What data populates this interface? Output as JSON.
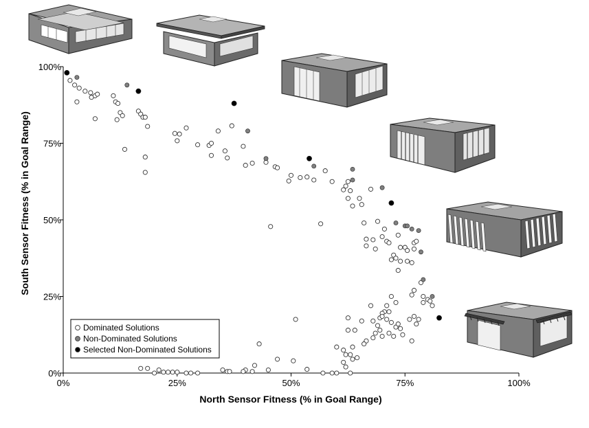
{
  "chart_data": {
    "type": "scatter",
    "title": "",
    "xlabel": "North Sensor Fitness (% in Goal Range)",
    "ylabel": "South Sensor Fitness (% in Goal Range)",
    "xlim": [
      0,
      100
    ],
    "ylim": [
      0,
      100
    ],
    "x_ticks": [
      "0%",
      "25%",
      "50%",
      "75%",
      "100%"
    ],
    "y_ticks": [
      "0%",
      "25%",
      "50%",
      "75%",
      "100%"
    ],
    "grid": false,
    "legend_position": "bottom-left",
    "series": [
      {
        "name": "Dominated Solutions",
        "color": "#ffffff",
        "points": [
          [
            1.5,
            95.5
          ],
          [
            2.5,
            94
          ],
          [
            3,
            88.5
          ],
          [
            3.5,
            93
          ],
          [
            4.8,
            92
          ],
          [
            6,
            91.5
          ],
          [
            6.2,
            90
          ],
          [
            7,
            90.5
          ],
          [
            7.5,
            91
          ],
          [
            7,
            83
          ],
          [
            11,
            90.5
          ],
          [
            11.5,
            88.5
          ],
          [
            12,
            88
          ],
          [
            12.5,
            85
          ],
          [
            11.8,
            82.7
          ],
          [
            13,
            84
          ],
          [
            13.5,
            73
          ],
          [
            16.5,
            85.5
          ],
          [
            17,
            84.5
          ],
          [
            17.5,
            83.5
          ],
          [
            18,
            83.5
          ],
          [
            18.5,
            80.5
          ],
          [
            18,
            70.5
          ],
          [
            18,
            65.5
          ],
          [
            24.5,
            78.2
          ],
          [
            25.5,
            78
          ],
          [
            25,
            75.8
          ],
          [
            27,
            80
          ],
          [
            29.5,
            74.5
          ],
          [
            32,
            74.3
          ],
          [
            32.5,
            75
          ],
          [
            32.5,
            71
          ],
          [
            34,
            79
          ],
          [
            35.5,
            72.5
          ],
          [
            36,
            70.2
          ],
          [
            37,
            80.7
          ],
          [
            39.5,
            74
          ],
          [
            40,
            67.8
          ],
          [
            41.5,
            68.5
          ],
          [
            44.5,
            68.8
          ],
          [
            46.5,
            67.3
          ],
          [
            47,
            67
          ],
          [
            49.5,
            62.7
          ],
          [
            50,
            64.5
          ],
          [
            52,
            63.8
          ],
          [
            53.5,
            64
          ],
          [
            55,
            63
          ],
          [
            56.5,
            48.7
          ],
          [
            45.5,
            47.8
          ],
          [
            57.5,
            66
          ],
          [
            59,
            62.5
          ],
          [
            61.5,
            59.8
          ],
          [
            62,
            61
          ],
          [
            62.5,
            62.5
          ],
          [
            62.5,
            57
          ],
          [
            63,
            59.5
          ],
          [
            63.5,
            54.5
          ],
          [
            65,
            57
          ],
          [
            65.5,
            55
          ],
          [
            66,
            49
          ],
          [
            66.5,
            43.7
          ],
          [
            66.5,
            41.5
          ],
          [
            67.5,
            60
          ],
          [
            68,
            43.5
          ],
          [
            68.5,
            40.5
          ],
          [
            69,
            49.5
          ],
          [
            70,
            44.5
          ],
          [
            70.5,
            47
          ],
          [
            71,
            43
          ],
          [
            71.5,
            42.5
          ],
          [
            72,
            37
          ],
          [
            72.5,
            38.5
          ],
          [
            73,
            37.5
          ],
          [
            73.5,
            45
          ],
          [
            73.5,
            33.5
          ],
          [
            74,
            41
          ],
          [
            74,
            36.5
          ],
          [
            75,
            41
          ],
          [
            75.5,
            40
          ],
          [
            75.5,
            36.5
          ],
          [
            76.5,
            36
          ],
          [
            77,
            42.5
          ],
          [
            77,
            40.5
          ],
          [
            77.5,
            43
          ],
          [
            76.5,
            25.5
          ],
          [
            77,
            27
          ],
          [
            78.5,
            29.5
          ],
          [
            79,
            25
          ],
          [
            80,
            24
          ],
          [
            80.5,
            23.5
          ],
          [
            81,
            22
          ],
          [
            71,
            22
          ],
          [
            72,
            25
          ],
          [
            73,
            23
          ],
          [
            70.5,
            20
          ],
          [
            69.5,
            18
          ],
          [
            69,
            15.5
          ],
          [
            69.5,
            14
          ],
          [
            70,
            19.5
          ],
          [
            71,
            17.5
          ],
          [
            71.5,
            20
          ],
          [
            72,
            16.5
          ],
          [
            73,
            15
          ],
          [
            73.5,
            16
          ],
          [
            74,
            14.5
          ],
          [
            74.5,
            12.5
          ],
          [
            72.5,
            12
          ],
          [
            71.5,
            13
          ],
          [
            70,
            12
          ],
          [
            68.5,
            13
          ],
          [
            68,
            17
          ],
          [
            67.5,
            22
          ],
          [
            66.5,
            10.5
          ],
          [
            66,
            9.5
          ],
          [
            64.5,
            5
          ],
          [
            63.5,
            4.5
          ],
          [
            62,
            2
          ],
          [
            61.5,
            3.5
          ],
          [
            61.5,
            7.5
          ],
          [
            62,
            6
          ],
          [
            63.5,
            8.5
          ],
          [
            63,
            6
          ],
          [
            60,
            8.5
          ],
          [
            62.5,
            14
          ],
          [
            62.5,
            18
          ],
          [
            76,
            17.5
          ],
          [
            77,
            18.5
          ],
          [
            77.5,
            16
          ],
          [
            79,
            23
          ],
          [
            78,
            17.5
          ],
          [
            76.5,
            10.5
          ],
          [
            70,
            18.5
          ],
          [
            68,
            11.5
          ],
          [
            65.5,
            17
          ],
          [
            64,
            14
          ],
          [
            43,
            9.5
          ],
          [
            42,
            2.5
          ],
          [
            40,
            1
          ],
          [
            39.5,
            0.5
          ],
          [
            36,
            0.5
          ],
          [
            35,
            1
          ],
          [
            29.5,
            0
          ],
          [
            28,
            0
          ],
          [
            27,
            0
          ],
          [
            25,
            0.3
          ],
          [
            24,
            0.3
          ],
          [
            23,
            0.3
          ],
          [
            22,
            0.3
          ],
          [
            21,
            1
          ],
          [
            20,
            0
          ],
          [
            18.5,
            1.5
          ],
          [
            17,
            1.5
          ],
          [
            53.5,
            1.2
          ],
          [
            57,
            0
          ],
          [
            59,
            0
          ],
          [
            60,
            0
          ],
          [
            63,
            0
          ],
          [
            51,
            17.5
          ],
          [
            50.5,
            4
          ],
          [
            47,
            4.5
          ],
          [
            45,
            1
          ],
          [
            41.5,
            0.5
          ],
          [
            36.5,
            0.5
          ]
        ]
      },
      {
        "name": "Non-Dominated Solutions",
        "color": "#808080",
        "points": [
          [
            3,
            96.5
          ],
          [
            14,
            94
          ],
          [
            40.5,
            79
          ],
          [
            44.5,
            70
          ],
          [
            55,
            67.5
          ],
          [
            63.5,
            63
          ],
          [
            63.5,
            66.5
          ],
          [
            70,
            60.5
          ],
          [
            73,
            49
          ],
          [
            75,
            48
          ],
          [
            75.5,
            48
          ],
          [
            76.5,
            47
          ],
          [
            78,
            46.5
          ],
          [
            78.5,
            39.5
          ],
          [
            79,
            30.5
          ],
          [
            81,
            25
          ]
        ]
      },
      {
        "name": "Selected Non-Dominated Solutions",
        "color": "#000000",
        "points": [
          [
            0.8,
            98
          ],
          [
            16.5,
            92
          ],
          [
            37.5,
            88
          ],
          [
            54,
            70
          ],
          [
            72,
            55.5
          ],
          [
            82.5,
            18
          ]
        ]
      }
    ]
  },
  "legend": {
    "items": [
      {
        "label": "Dominated Solutions",
        "fill": "#ffffff"
      },
      {
        "label": "Non-Dominated Solutions",
        "fill": "#808080"
      },
      {
        "label": "Selected Non-Dominated Solutions",
        "fill": "#000000"
      }
    ]
  },
  "illustrations": {
    "items": [
      {
        "name": "building-illustration-1"
      },
      {
        "name": "building-illustration-2"
      },
      {
        "name": "building-illustration-3"
      },
      {
        "name": "building-illustration-4"
      },
      {
        "name": "building-illustration-5"
      },
      {
        "name": "building-illustration-6"
      }
    ]
  }
}
